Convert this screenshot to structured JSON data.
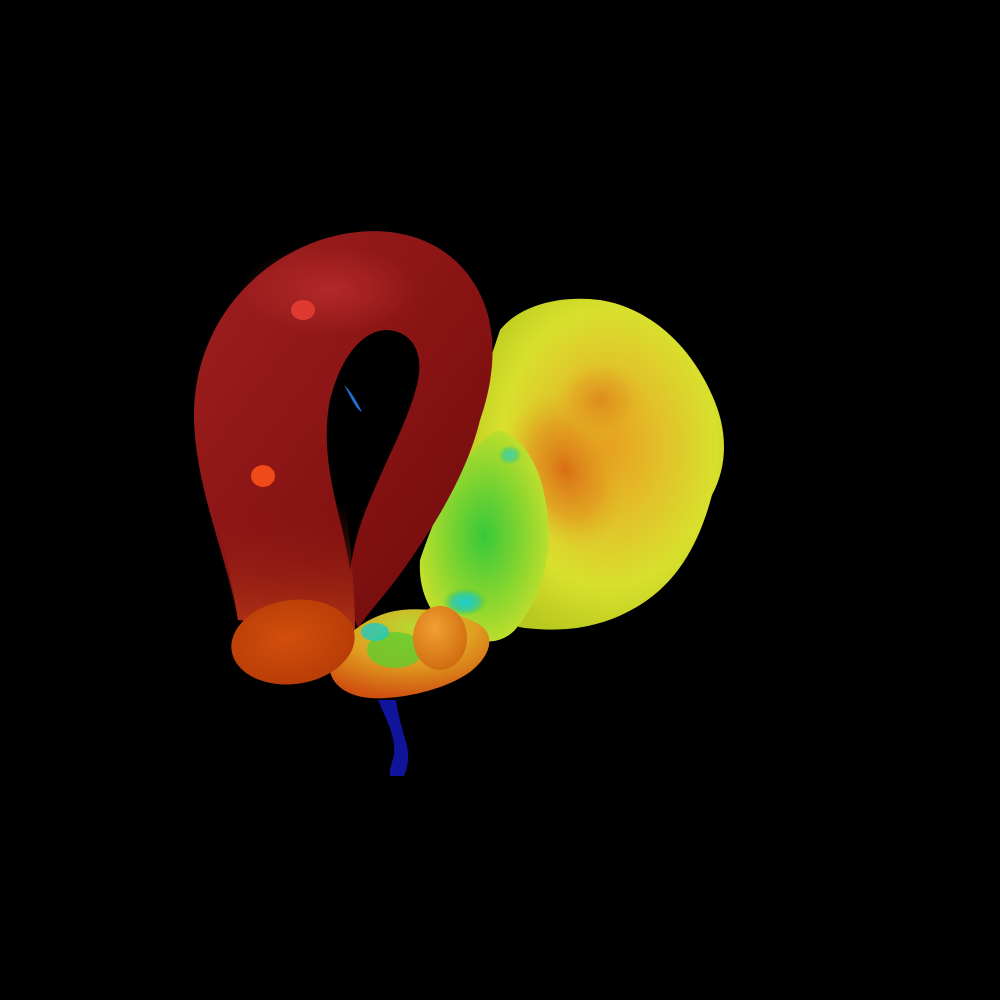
{
  "scene": {
    "background_color": "#000000",
    "colormap": [
      "#0a0a7a",
      "#1a5ad8",
      "#22c8d8",
      "#3ad23a",
      "#c8e62a",
      "#e8e628",
      "#e8901a",
      "#d24a10",
      "#a01818",
      "#7a0c0c"
    ]
  }
}
